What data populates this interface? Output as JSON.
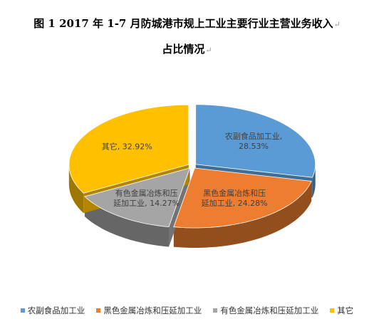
{
  "title_line1": "图 1  2017 年 1-7 月防城港市规上工业主要行业主营业务收入",
  "title_line2": "占比情况",
  "chart_data": {
    "type": "pie",
    "title": "图 1  2017 年 1-7 月防城港市规上工业主要行业主营业务收入占比情况",
    "style": "3d-exploded",
    "legend_position": "bottom",
    "unit": "%",
    "slices": [
      {
        "label": "农副食品加工业",
        "value": 28.53,
        "color": "#5b9bd5"
      },
      {
        "label": "黑色金属冶炼和压延加工业",
        "value": 24.28,
        "color": "#ed7d31"
      },
      {
        "label": "有色金属冶炼和压延加工业",
        "value": 14.27,
        "color": "#a5a5a5"
      },
      {
        "label": "其它",
        "value": 32.92,
        "color": "#ffc000"
      }
    ],
    "data_labels": [
      [
        "农副食品加工业,",
        "28.53%"
      ],
      [
        "黑色金属冶炼和压",
        "延加工业, 24.28%"
      ],
      [
        "有色金属冶炼和压",
        "延加工业, 14.27%"
      ],
      [
        "其它, 32.92%"
      ]
    ]
  },
  "legend": [
    {
      "label": "农副食品加工业",
      "color": "#5b9bd5"
    },
    {
      "label": "黑色金属冶炼和压延加工业",
      "color": "#ed7d31"
    },
    {
      "label": "有色金属冶炼和压延加工业",
      "color": "#a5a5a5"
    },
    {
      "label": "其它",
      "color": "#ffc000"
    }
  ]
}
